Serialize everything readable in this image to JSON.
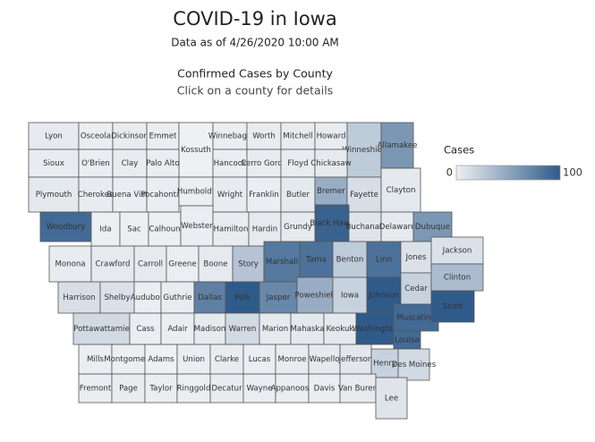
{
  "chart_data": {
    "type": "choropleth",
    "title": "COVID-19 in Iowa",
    "subtitle": "Data as of 4/26/2020 10:00 AM",
    "map_title": "Confirmed Cases by County",
    "map_subtitle": "Click on a county for details",
    "legend": {
      "title": "Cases",
      "range": [
        0,
        100
      ],
      "ticks": [
        0,
        100
      ],
      "colors": [
        "#eef0f3",
        "#2f5b8a"
      ]
    },
    "categories": [
      "Lyon",
      "Osceola",
      "Dickinson",
      "Emmet",
      "Kossuth",
      "Winnebago",
      "Worth",
      "Mitchell",
      "Howard",
      "Winneshiek",
      "Allamakee",
      "Sioux",
      "O'Brien",
      "Clay",
      "Palo Alto",
      "Hancock",
      "Cerro Gordo",
      "Floyd",
      "Chickasaw",
      "Plymouth",
      "Cherokee",
      "Buena Vista",
      "Pocahontas",
      "Humboldt",
      "Wright",
      "Franklin",
      "Butler",
      "Bremer",
      "Fayette",
      "Clayton",
      "Woodbury",
      "Ida",
      "Sac",
      "Calhoun",
      "Webster",
      "Hamilton",
      "Hardin",
      "Grundy",
      "Black Hawk",
      "Buchanan",
      "Delaware",
      "Dubuque",
      "Monona",
      "Crawford",
      "Carroll",
      "Greene",
      "Boone",
      "Story",
      "Marshall",
      "Tama",
      "Benton",
      "Linn",
      "Jones",
      "Jackson",
      "Harrison",
      "Shelby",
      "Audubon",
      "Guthrie",
      "Dallas",
      "Polk",
      "Jasper",
      "Poweshiek",
      "Iowa",
      "Johnson",
      "Cedar",
      "Clinton",
      "Pottawattamie",
      "Cass",
      "Adair",
      "Madison",
      "Warren",
      "Marion",
      "Mahaska",
      "Keokuk",
      "Washington",
      "Muscatine",
      "Scott",
      "Louisa",
      "Mills",
      "Montgomery",
      "Adams",
      "Union",
      "Clarke",
      "Lucas",
      "Monroe",
      "Wapello",
      "Jefferson",
      "Henry",
      "Des Moines",
      "Fremont",
      "Page",
      "Taylor",
      "Ringgold",
      "Decatur",
      "Wayne",
      "Appanoose",
      "Davis",
      "Van Buren",
      "Lee"
    ],
    "values": [
      4,
      2,
      3,
      2,
      0,
      2,
      3,
      3,
      3,
      25,
      60,
      3,
      2,
      3,
      2,
      2,
      3,
      3,
      4,
      5,
      3,
      2,
      2,
      2,
      3,
      2,
      5,
      45,
      12,
      5,
      90,
      1,
      1,
      1,
      2,
      3,
      4,
      4,
      95,
      8,
      4,
      60,
      3,
      4,
      4,
      2,
      4,
      30,
      80,
      85,
      25,
      85,
      10,
      10,
      12,
      10,
      2,
      3,
      75,
      100,
      70,
      45,
      20,
      100,
      20,
      35,
      15,
      2,
      2,
      4,
      15,
      4,
      5,
      5,
      100,
      90,
      100,
      90,
      2,
      1,
      0,
      2,
      3,
      2,
      3,
      4,
      6,
      20,
      15,
      2,
      3,
      2,
      1,
      3,
      2,
      2,
      2,
      4,
      8
    ]
  }
}
